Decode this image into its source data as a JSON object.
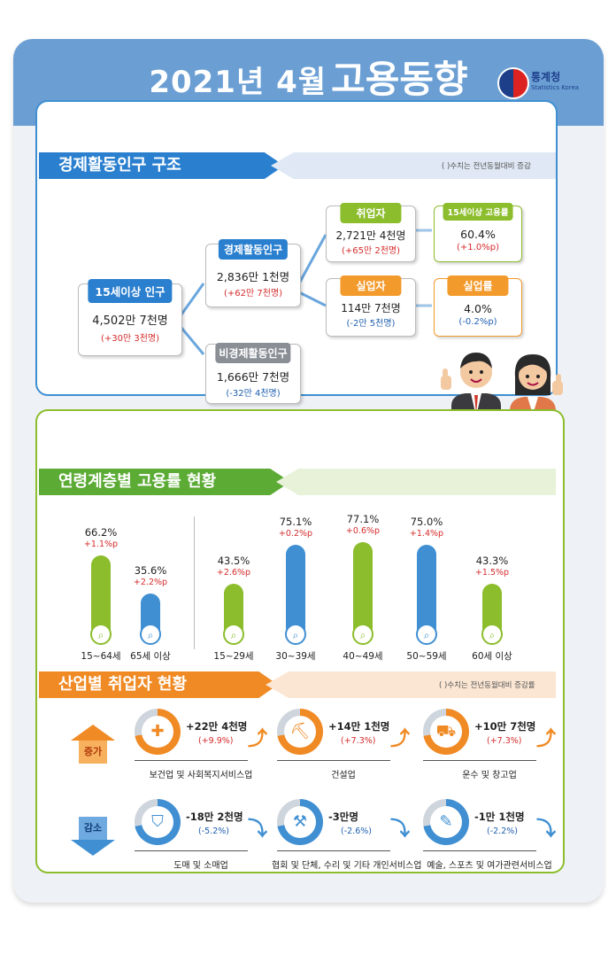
{
  "header": {
    "title_main": "2021년 4월",
    "title_sub": "고용동향",
    "logo_ko": "통계청",
    "logo_en": "Statistics Korea"
  },
  "structure": {
    "title": "경제활동인구 구조",
    "note": "( )수치는 전년동월대비 증감",
    "pop15": {
      "label": "15세이상 인구",
      "value": "4,502만 7천명",
      "change": "(+30만 3천명)"
    },
    "active": {
      "label": "경제활동인구",
      "value": "2,836만 1천명",
      "change": "(+62만 7천명)"
    },
    "inactive": {
      "label": "비경제활동인구",
      "value": "1,666만 7천명",
      "change": "(-32만 4천명)"
    },
    "employed": {
      "label": "취업자",
      "value": "2,721만 4천명",
      "change": "(+65만 2천명)"
    },
    "emp_rate": {
      "label": "15세이상 고용률",
      "value": "60.4%",
      "change": "(+1.0%p)"
    },
    "unemployed": {
      "label": "실업자",
      "value": "114만 7천명",
      "change": "(-2만 5천명)"
    },
    "unemp_rate": {
      "label": "실업률",
      "value": "4.0%",
      "change": "(-0.2%p)"
    }
  },
  "age_section": {
    "title": "연령계층별 고용률 현황"
  },
  "chart_data": {
    "type": "bar",
    "title": "연령계층별 고용률 현황",
    "categories": [
      "15~64세",
      "65세 이상",
      "15~29세",
      "30~39세",
      "40~49세",
      "50~59세",
      "60세 이상"
    ],
    "values": [
      66.2,
      35.6,
      43.5,
      75.1,
      77.1,
      75.0,
      43.3
    ],
    "value_labels": [
      "66.2%",
      "35.6%",
      "43.5%",
      "75.1%",
      "77.1%",
      "75.0%",
      "43.3%"
    ],
    "changes": [
      "+1.1%p",
      "+2.2%p",
      "+2.6%p",
      "+0.2%p",
      "+0.6%p",
      "+1.4%p",
      "+1.5%p"
    ],
    "colors": [
      "#8cbd2c",
      "#3f8fd2",
      "#8cbd2c",
      "#3f8fd2",
      "#8cbd2c",
      "#3f8fd2",
      "#8cbd2c"
    ],
    "unit": "%"
  },
  "industry": {
    "title": "산업별 취업자 현황",
    "note": "( )수치는 전년동월대비 증감률",
    "increase_label": "증가",
    "decrease_label": "감소",
    "increase": [
      {
        "name": "보건업 및 사회복지서비스업",
        "value": "+22만 4천명",
        "change": "(+9.9%)",
        "icon": "medical-kit-icon"
      },
      {
        "name": "건설업",
        "value": "+14만 1천명",
        "change": "(+7.3%)",
        "icon": "excavator-icon"
      },
      {
        "name": "운수 및 창고업",
        "value": "+10만 7천명",
        "change": "(+7.3%)",
        "icon": "truck-icon"
      }
    ],
    "decrease": [
      {
        "name": "도매 및 소매업",
        "value": "-18만 2천명",
        "change": "(-5.2%)",
        "icon": "basket-icon"
      },
      {
        "name": "협회 및 단체, 수리 및 기타 개인서비스업",
        "value": "-3만명",
        "change": "(-2.6%)",
        "icon": "wrench-icon"
      },
      {
        "name": "예술, 스포츠 및 여가관련서비스업",
        "value": "-1만 1천명",
        "change": "(-2.2%)",
        "icon": "palette-icon"
      }
    ]
  }
}
